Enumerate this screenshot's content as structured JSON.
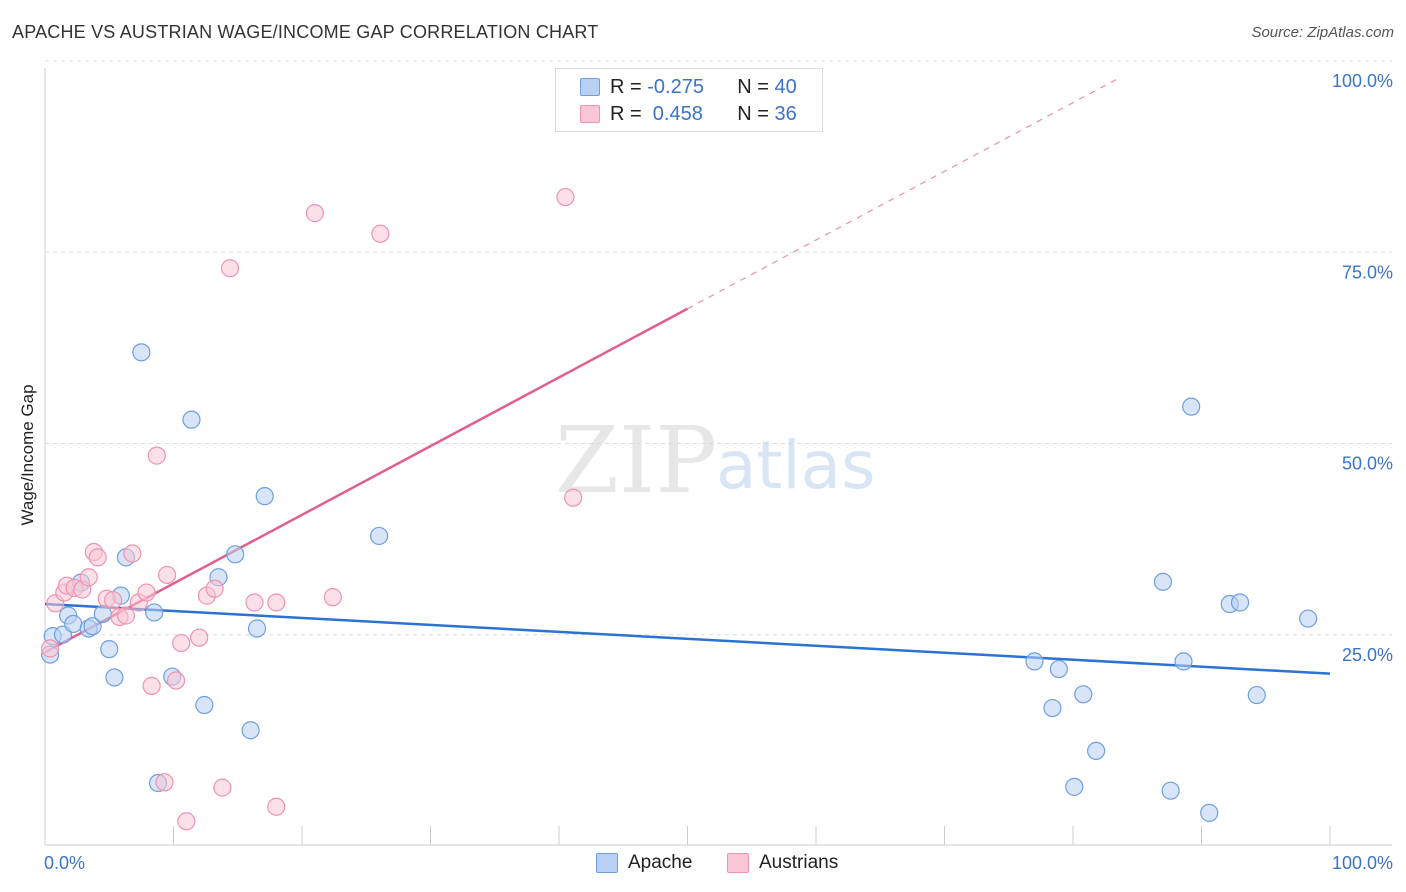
{
  "title": "APACHE VS AUSTRIAN WAGE/INCOME GAP CORRELATION CHART",
  "source": "Source: ZipAtlas.com",
  "watermark": {
    "zip": "ZIP",
    "atlas": "atlas"
  },
  "colors": {
    "apache_fill": "#b8d0f3",
    "apache_stroke": "#6f9fe0",
    "apache_line": "#2b72d2",
    "austrians_fill": "#f8c6d4",
    "austrians_stroke": "#ee93b0",
    "austrians_line": "#e0608b",
    "accent_text": "#3b73c8"
  },
  "legend_stats": [
    {
      "series": "Apache",
      "r_label": "R = ",
      "r_value": "-0.275",
      "n_label": "N = ",
      "n_value": "40"
    },
    {
      "series": "Austrians",
      "r_label": "R = ",
      "r_value": " 0.458",
      "n_label": "N = ",
      "n_value": "36"
    }
  ],
  "chart_data": {
    "type": "scatter",
    "title": "APACHE VS AUSTRIAN WAGE/INCOME GAP CORRELATION CHART",
    "xlabel": "",
    "ylabel": "Wage/Income Gap",
    "xlim": [
      0,
      100
    ],
    "ylim": [
      0,
      100
    ],
    "x_tick_labels": [
      "0.0%",
      "100.0%"
    ],
    "y_tick_labels": [
      "25.0%",
      "50.0%",
      "75.0%",
      "100.0%"
    ],
    "y_ticks": [
      25,
      50,
      75,
      100
    ],
    "grid": true,
    "legend": "bottom-center",
    "series": [
      {
        "name": "Apache",
        "points": [
          [
            0.4,
            24.9
          ],
          [
            0.6,
            27.3
          ],
          [
            1.4,
            27.5
          ],
          [
            1.8,
            30.0
          ],
          [
            2.2,
            28.9
          ],
          [
            2.8,
            34.3
          ],
          [
            3.4,
            28.3
          ],
          [
            3.7,
            28.6
          ],
          [
            4.5,
            30.2
          ],
          [
            5.0,
            25.6
          ],
          [
            5.4,
            21.9
          ],
          [
            5.9,
            32.6
          ],
          [
            6.3,
            37.6
          ],
          [
            7.5,
            64.4
          ],
          [
            8.5,
            30.4
          ],
          [
            8.8,
            8.1
          ],
          [
            9.9,
            22.0
          ],
          [
            11.4,
            55.6
          ],
          [
            12.4,
            18.3
          ],
          [
            13.5,
            35.0
          ],
          [
            14.8,
            38.0
          ],
          [
            16.0,
            15.0
          ],
          [
            16.5,
            28.3
          ],
          [
            17.1,
            45.6
          ],
          [
            26.0,
            40.4
          ],
          [
            77.0,
            24.0
          ],
          [
            78.4,
            17.9
          ],
          [
            78.9,
            23.0
          ],
          [
            80.1,
            7.6
          ],
          [
            80.8,
            19.7
          ],
          [
            81.8,
            12.3
          ],
          [
            87.0,
            34.4
          ],
          [
            87.6,
            7.1
          ],
          [
            88.6,
            24.0
          ],
          [
            89.2,
            57.3
          ],
          [
            90.6,
            4.2
          ],
          [
            92.2,
            31.5
          ],
          [
            93.0,
            31.7
          ],
          [
            94.3,
            19.6
          ],
          [
            98.3,
            29.6
          ]
        ],
        "trend": {
          "x": [
            0,
            100
          ],
          "y": [
            31.5,
            22.4
          ],
          "dashed_to_x": null
        }
      },
      {
        "name": "Austrians",
        "points": [
          [
            0.4,
            25.7
          ],
          [
            0.8,
            31.6
          ],
          [
            1.5,
            33.0
          ],
          [
            1.7,
            33.9
          ],
          [
            2.3,
            33.6
          ],
          [
            2.9,
            33.4
          ],
          [
            3.4,
            35.0
          ],
          [
            3.8,
            38.3
          ],
          [
            4.1,
            37.6
          ],
          [
            4.8,
            32.2
          ],
          [
            5.3,
            32.0
          ],
          [
            5.8,
            29.8
          ],
          [
            6.3,
            30.0
          ],
          [
            6.8,
            38.1
          ],
          [
            7.3,
            31.7
          ],
          [
            7.9,
            33.0
          ],
          [
            8.3,
            20.8
          ],
          [
            8.7,
            50.9
          ],
          [
            9.3,
            8.2
          ],
          [
            9.5,
            35.3
          ],
          [
            10.2,
            21.5
          ],
          [
            10.6,
            26.4
          ],
          [
            11.0,
            3.1
          ],
          [
            12.0,
            27.1
          ],
          [
            12.6,
            32.6
          ],
          [
            13.2,
            33.5
          ],
          [
            13.8,
            7.5
          ],
          [
            14.4,
            75.4
          ],
          [
            16.3,
            31.7
          ],
          [
            18.0,
            31.7
          ],
          [
            18.0,
            5.0
          ],
          [
            21.0,
            82.6
          ],
          [
            22.4,
            32.4
          ],
          [
            26.1,
            79.9
          ],
          [
            40.5,
            84.7
          ],
          [
            41.1,
            45.4
          ]
        ],
        "trend": {
          "x": [
            0,
            50
          ],
          "y": [
            25.2,
            70.1
          ],
          "dashed_to_x": 83.5
        }
      }
    ]
  }
}
